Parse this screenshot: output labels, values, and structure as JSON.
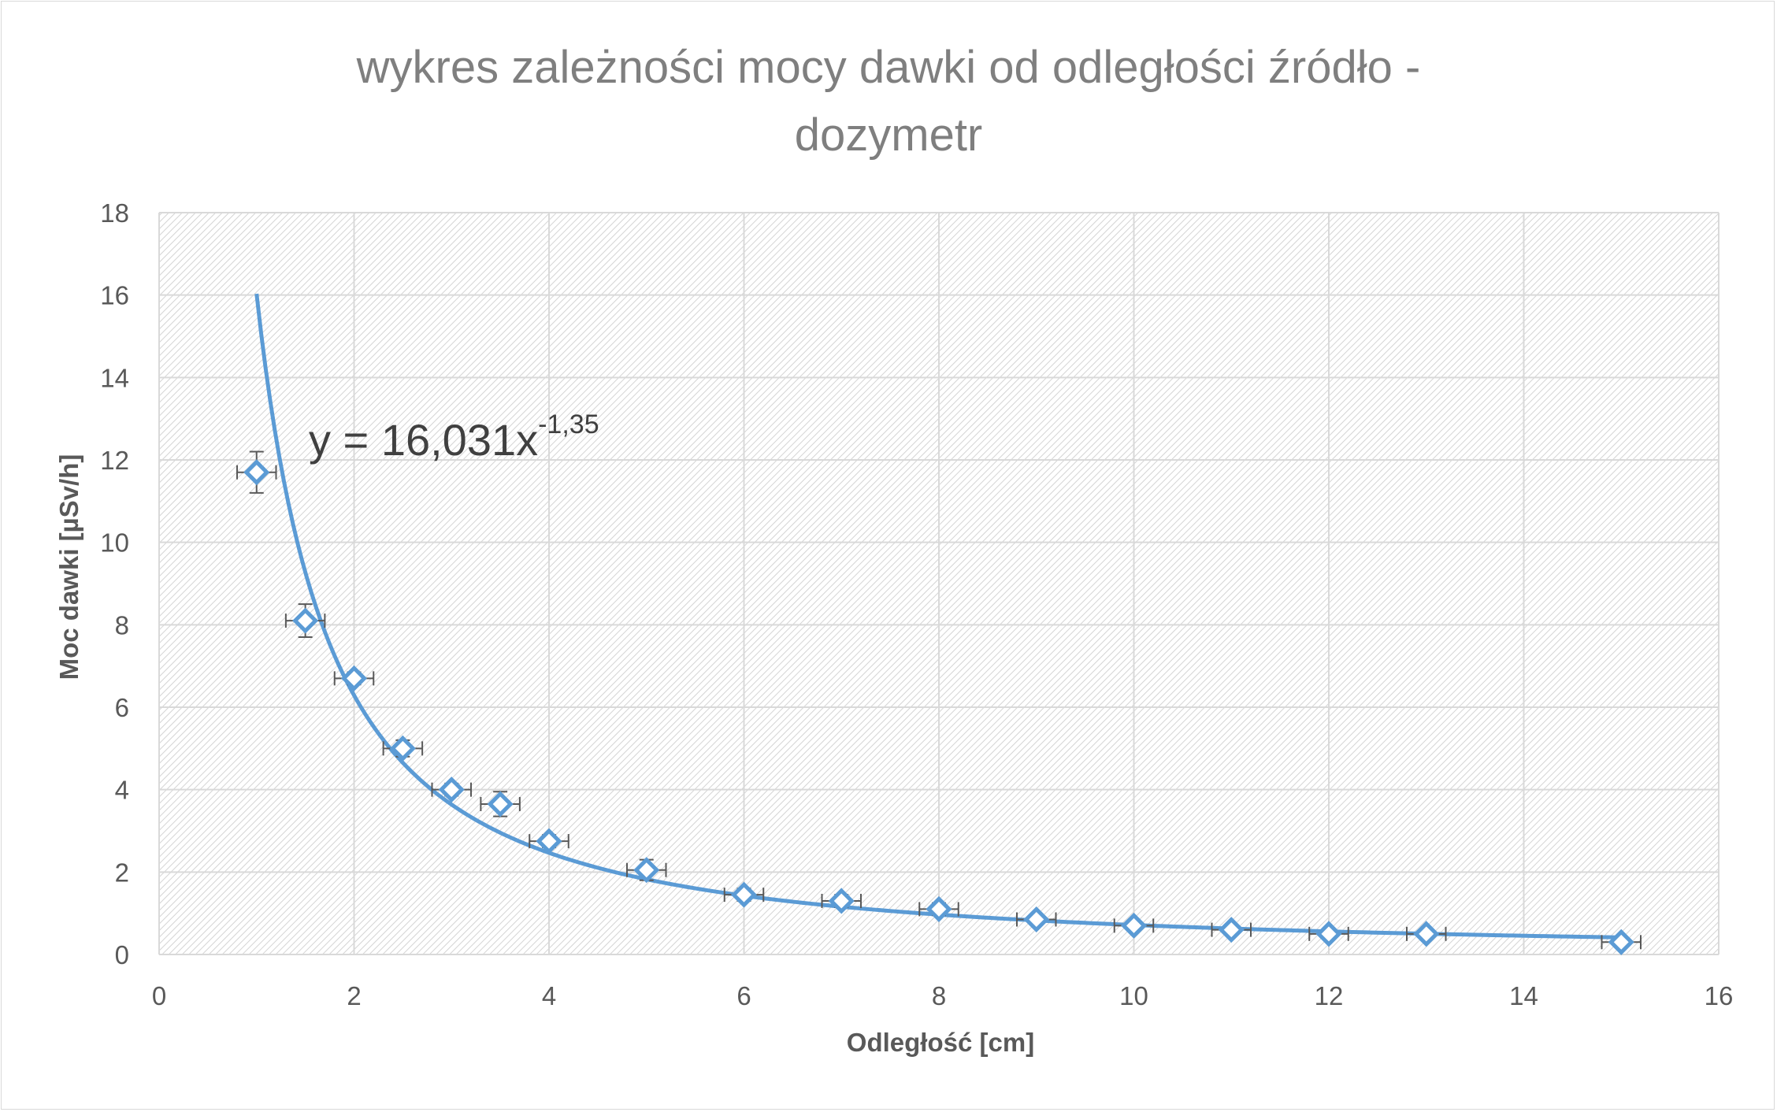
{
  "chart_data": {
    "type": "scatter",
    "title": [
      "wykres zależności mocy dawki od odległości źródło -",
      "dozymetr"
    ],
    "xlabel": "Odległość [cm]",
    "ylabel": "Moc dawki [µSv/h]",
    "xlim": [
      0,
      16
    ],
    "ylim": [
      0,
      18
    ],
    "xticks": [
      0,
      2,
      4,
      6,
      8,
      10,
      12,
      14,
      16
    ],
    "yticks": [
      0,
      2,
      4,
      6,
      8,
      10,
      12,
      14,
      16,
      18
    ],
    "grid": true,
    "legend": "none",
    "series": [
      {
        "x": [
          1,
          1.5,
          2,
          2.5,
          3,
          3.5,
          4,
          5,
          6,
          7,
          8,
          9,
          10,
          11,
          12,
          13,
          15
        ],
        "y": [
          11.7,
          8.1,
          6.7,
          5.0,
          4.0,
          3.65,
          2.75,
          2.05,
          1.45,
          1.3,
          1.1,
          0.85,
          0.7,
          0.6,
          0.5,
          0.5,
          0.3
        ],
        "x_error": 0.2,
        "y_error": [
          0.5,
          0.4,
          0.15,
          0.2,
          0.15,
          0.3,
          0.15,
          0.25,
          0.15,
          0.15,
          0.15,
          0.1,
          0.1,
          0.1,
          0.1,
          0.1,
          0.05
        ],
        "color": "#5b9bd5",
        "marker": "diamond-open"
      }
    ],
    "trendline": {
      "type": "power",
      "a": 16.031,
      "b": -1.35,
      "x_range": [
        1,
        15
      ],
      "color": "#5b9bd5"
    },
    "equation_label": {
      "main": "y = 16,031x",
      "exponent": "-1,35"
    },
    "colors": {
      "plot_grid": "#d9d9d9",
      "error_bar": "#595959",
      "tick_label": "#595959",
      "title": "#7f7f7f"
    }
  }
}
